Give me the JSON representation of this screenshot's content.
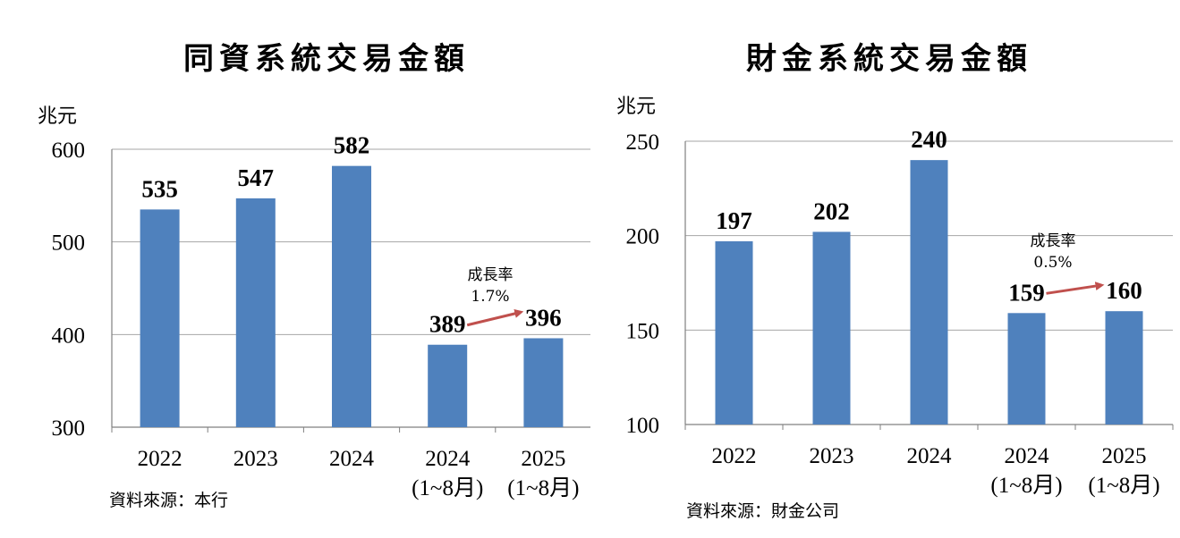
{
  "charts": [
    {
      "title": "同資系統交易金額",
      "unit": "兆元",
      "source": "資料來源：本行",
      "growth_label": "成長率",
      "growth_value": "1.7%",
      "bar_color": "#4f81bd",
      "arrow_color": "#c0504d"
    },
    {
      "title": "財金系統交易金額",
      "unit": "兆元",
      "source": "資料來源：財金公司",
      "growth_label": "成長率",
      "growth_value": "0.5%",
      "bar_color": "#4f81bd",
      "arrow_color": "#c0504d"
    }
  ],
  "chart_data": [
    {
      "type": "bar",
      "title": "同資系統交易金額",
      "ylabel": "兆元",
      "categories": [
        [
          "2022"
        ],
        [
          "2023"
        ],
        [
          "2024"
        ],
        [
          "2024",
          "(1~8月)"
        ],
        [
          "2025",
          "(1~8月)"
        ]
      ],
      "values": [
        535,
        547,
        582,
        389,
        396
      ],
      "data_labels": [
        "535",
        "547",
        "582",
        "389",
        "396"
      ],
      "ylim": [
        300,
        600
      ],
      "yticks": [
        300,
        400,
        500,
        600
      ],
      "grid": true,
      "annotation": {
        "text": [
          "成長率",
          "1.7%"
        ],
        "from_index": 3,
        "to_index": 4
      }
    },
    {
      "type": "bar",
      "title": "財金系統交易金額",
      "ylabel": "兆元",
      "categories": [
        [
          "2022"
        ],
        [
          "2023"
        ],
        [
          "2024"
        ],
        [
          "2024",
          "(1~8月)"
        ],
        [
          "2025",
          "(1~8月)"
        ]
      ],
      "values": [
        197,
        202,
        240,
        159,
        160
      ],
      "data_labels": [
        "197",
        "202",
        "240",
        "159",
        "160"
      ],
      "ylim": [
        100,
        250
      ],
      "yticks": [
        100,
        150,
        200,
        250
      ],
      "grid": true,
      "annotation": {
        "text": [
          "成長率",
          "0.5%"
        ],
        "from_index": 3,
        "to_index": 4
      }
    }
  ]
}
